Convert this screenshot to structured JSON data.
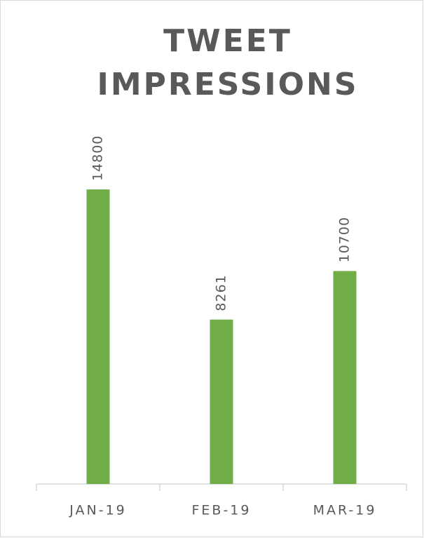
{
  "chart_data": {
    "type": "bar",
    "title": "TWEET IMPRESSIONS",
    "categories": [
      "JAN-19",
      "FEB-19",
      "MAR-19"
    ],
    "values": [
      14800,
      8261,
      10700
    ],
    "color": "#70ad47",
    "ylim": [
      0,
      16000
    ]
  }
}
